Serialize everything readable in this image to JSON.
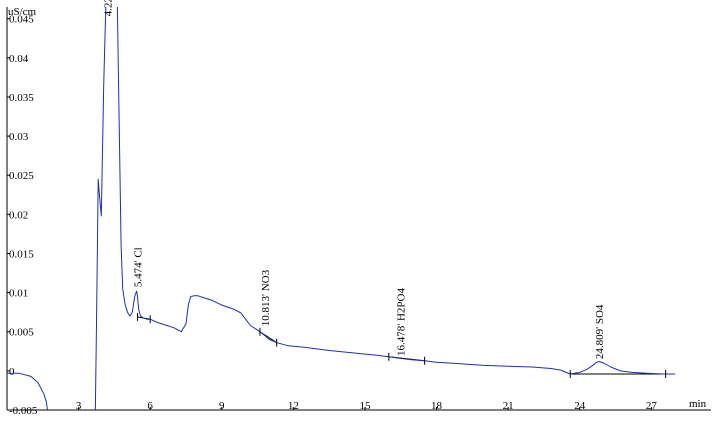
{
  "chart_data": {
    "type": "line",
    "title": "",
    "ylabel": "uS/cm",
    "xlabel": "min",
    "xlim": [
      0,
      29.5
    ],
    "ylim": [
      -0.005,
      0.0465
    ],
    "x_ticks": [
      3,
      6,
      9,
      12,
      15,
      18,
      21,
      24,
      27
    ],
    "y_ticks": [
      -0.005,
      0,
      0.005,
      0.01,
      0.015,
      0.02,
      0.025,
      0.03,
      0.035,
      0.04,
      0.045
    ],
    "y_tick_labels": [
      "-0.005",
      "0",
      "0.005",
      "0.01",
      "0.015",
      "0.02",
      "0.025",
      "0.03",
      "0.035",
      "0.04",
      "0.045"
    ],
    "x_tick_labels": [
      "3",
      "6",
      "9",
      "12",
      "15",
      "18",
      "21",
      "24",
      "27"
    ],
    "grid": false,
    "series": [
      {
        "color": "#1f2fb0",
        "x": [
          0,
          0.5,
          1.0,
          1.3,
          1.55,
          1.65,
          1.72,
          3.7,
          3.75,
          3.82,
          3.88,
          3.95,
          4.05,
          4.15,
          4.2,
          4.27,
          4.33,
          4.4,
          4.47,
          4.55,
          4.62,
          4.7,
          4.78,
          4.85,
          4.95,
          5.05,
          5.15,
          5.25,
          5.35,
          5.43,
          5.47,
          5.52,
          5.6,
          5.7,
          5.85,
          6.0,
          6.3,
          6.7,
          7.0,
          7.3,
          7.5,
          7.6,
          7.7,
          7.85,
          8.0,
          8.3,
          8.6,
          9.0,
          9.5,
          9.8,
          10.0,
          10.2,
          10.4,
          10.6,
          10.81,
          11.0,
          11.3,
          11.8,
          12.5,
          13.5,
          14.5,
          15.5,
          16.0,
          16.48,
          17.0,
          17.5,
          18.0,
          19.0,
          20.0,
          21.0,
          22.0,
          22.8,
          23.2,
          23.6,
          24.0,
          24.3,
          24.5,
          24.7,
          24.81,
          25.0,
          25.3,
          25.7,
          26.2,
          26.8,
          27.5,
          28.0
        ],
        "y": [
          -0.0003,
          -0.0003,
          -0.0007,
          -0.0015,
          -0.003,
          -0.004,
          -0.0055,
          -0.0055,
          0.006,
          0.0245,
          0.0222,
          0.0198,
          0.0365,
          0.0475,
          0.0475,
          0.0475,
          0.0475,
          0.0475,
          0.0475,
          0.0475,
          0.047,
          0.0315,
          0.016,
          0.0105,
          0.0085,
          0.0075,
          0.007,
          0.0075,
          0.0095,
          0.0102,
          0.0095,
          0.0078,
          0.007,
          0.0068,
          0.0066,
          0.0066,
          0.0062,
          0.0058,
          0.0055,
          0.005,
          0.006,
          0.0085,
          0.0095,
          0.0096,
          0.0096,
          0.0093,
          0.009,
          0.0084,
          0.0079,
          0.0074,
          0.0066,
          0.0058,
          0.0054,
          0.005,
          0.0045,
          0.004,
          0.0036,
          0.0032,
          0.003,
          0.0026,
          0.0023,
          0.002,
          0.0018,
          0.0016,
          0.0014,
          0.0013,
          0.0011,
          0.0009,
          0.0007,
          0.0006,
          0.0005,
          0.0003,
          0.0001,
          -0.0004,
          -0.0002,
          0.0002,
          0.0006,
          0.0011,
          0.0012,
          0.001,
          0.0005,
          0.0,
          -0.0002,
          -0.0003,
          -0.0004,
          -0.0004
        ]
      }
    ],
    "baseline_segments": [
      {
        "x": [
          5.45,
          6.0
        ],
        "y": [
          0.0069,
          0.0066
        ]
      },
      {
        "x": [
          10.6,
          11.3
        ],
        "y": [
          0.005,
          0.0036
        ]
      },
      {
        "x": [
          16.0,
          17.5
        ],
        "y": [
          0.0018,
          0.0013
        ]
      },
      {
        "x": [
          23.6,
          27.6
        ],
        "y": [
          -0.0004,
          -0.0004
        ]
      }
    ],
    "integration_marks": [
      {
        "x": 5.47,
        "y": 0.0069
      },
      {
        "x": 6.0,
        "y": 0.0066
      },
      {
        "x": 10.6,
        "y": 0.005
      },
      {
        "x": 11.3,
        "y": 0.0036
      },
      {
        "x": 16.0,
        "y": 0.0018
      },
      {
        "x": 17.5,
        "y": 0.0013
      },
      {
        "x": 23.6,
        "y": -0.0004
      },
      {
        "x": 27.6,
        "y": -0.0004
      }
    ],
    "annotations": [
      {
        "text": "4.22",
        "x": 4.22,
        "y": 0.0453
      },
      {
        "text": "5.474'  Cl",
        "x": 5.47,
        "y": 0.0107
      },
      {
        "text": "10.813'  NO3",
        "x": 10.81,
        "y": 0.0057
      },
      {
        "text": "16.478'  H2PO4",
        "x": 16.48,
        "y": 0.0019
      },
      {
        "text": "24.809'  SO4",
        "x": 24.81,
        "y": 0.0015
      }
    ]
  }
}
